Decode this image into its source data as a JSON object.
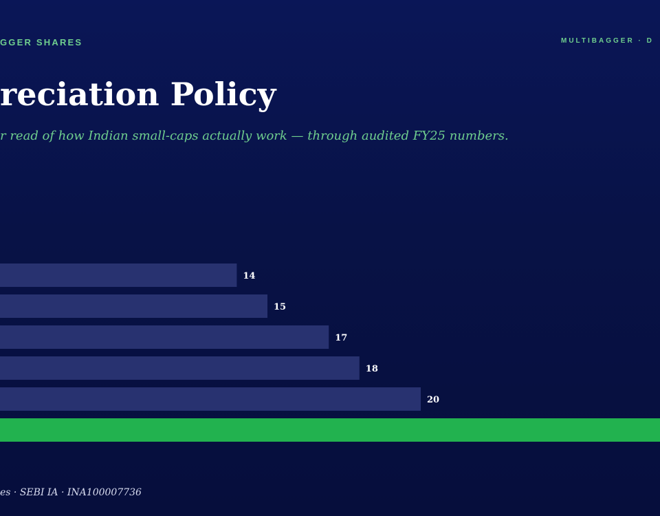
{
  "header": {
    "brand_left": "GGER SHARES",
    "brand_right": "MULTIBAGGER · D"
  },
  "main": {
    "title": "reciation Policy",
    "subtitle": "r read of how Indian small-caps actually work — through audited FY25 numbers."
  },
  "footer": {
    "text": "es · SEBI IA · INA100007736"
  },
  "colors": {
    "bar": "#283270",
    "highlight_bar": "#22b24f",
    "value_label": "#ffffff",
    "accent": "#6fce8e"
  },
  "chart_data": {
    "type": "bar",
    "orientation": "horizontal",
    "values": [
      14,
      15,
      17,
      18,
      20,
      null
    ],
    "value_labels": [
      "14",
      "15",
      "17",
      "18",
      "20",
      ""
    ],
    "highlight_index": 5,
    "grid": false,
    "legend": "none"
  }
}
